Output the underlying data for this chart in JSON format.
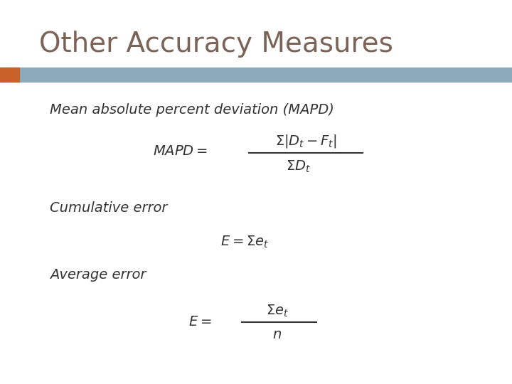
{
  "title": "Other Accuracy Measures",
  "title_color": "#7B6457",
  "title_fontsize": 28,
  "bg_color": "#FFFFFF",
  "header_bar_color": "#8BAABB",
  "header_accent_color": "#C8612A",
  "text_color": "#333333",
  "label1": "Mean absolute percent deviation (MAPD)",
  "label2": "Cumulative error",
  "label3": "Average error"
}
